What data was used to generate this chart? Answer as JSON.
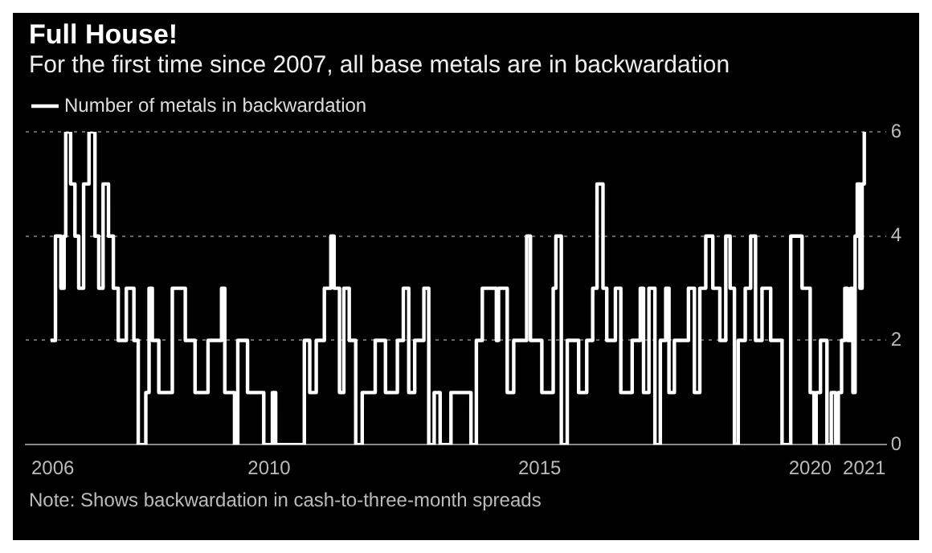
{
  "chart_data": {
    "type": "step",
    "title": "Full House!",
    "subtitle": "For the first time since 2007, all base metals are in backwardation",
    "annotations": [
      "Note: Shows backwardation in cash-to-three-month spreads"
    ],
    "legend": "top left",
    "grid": "y",
    "xlim": [
      2005.5,
      2021.4
    ],
    "xticks": [
      2006,
      2010,
      2015,
      2020,
      2021
    ],
    "ylim": [
      0,
      6
    ],
    "yticks": [
      0,
      2,
      4,
      6
    ],
    "series": [
      {
        "name": "Number of metals in backwardation",
        "color": "#ffffff",
        "x": [
          2005.96,
          2006.05,
          2006.15,
          2006.21,
          2006.24,
          2006.33,
          2006.41,
          2006.48,
          2006.57,
          2006.67,
          2006.78,
          2006.85,
          2006.93,
          2007.03,
          2007.12,
          2007.21,
          2007.36,
          2007.5,
          2007.58,
          2007.72,
          2007.78,
          2007.84,
          2007.96,
          2008.21,
          2008.45,
          2008.63,
          2008.87,
          2009.12,
          2009.18,
          2009.36,
          2009.42,
          2009.6,
          2009.9,
          2010.06,
          2010.12,
          2010.65,
          2010.75,
          2010.87,
          2011.02,
          2011.14,
          2011.2,
          2011.3,
          2011.38,
          2011.48,
          2011.6,
          2011.72,
          2011.96,
          2012.15,
          2012.37,
          2012.48,
          2012.58,
          2012.69,
          2012.86,
          2012.95,
          2013.05,
          2013.16,
          2013.36,
          2013.73,
          2013.83,
          2013.94,
          2014.2,
          2014.24,
          2014.4,
          2014.52,
          2014.76,
          2014.83,
          2015.04,
          2015.25,
          2015.3,
          2015.4,
          2015.51,
          2015.72,
          2015.87,
          2015.98,
          2016.06,
          2016.17,
          2016.24,
          2016.4,
          2016.5,
          2016.71,
          2016.86,
          2016.92,
          2017.02,
          2017.13,
          2017.23,
          2017.33,
          2017.39,
          2017.49,
          2017.65,
          2017.75,
          2017.86,
          2017.96,
          2018.07,
          2018.2,
          2018.33,
          2018.44,
          2018.52,
          2018.6,
          2018.67,
          2018.8,
          2018.9,
          2018.99,
          2019.11,
          2019.27,
          2019.48,
          2019.64,
          2019.85,
          2020.0,
          2020.07,
          2020.11,
          2020.19,
          2020.31,
          2020.39,
          2020.47,
          2020.52,
          2020.58,
          2020.64,
          2020.69,
          2020.75,
          2020.79,
          2020.83,
          2020.87,
          2020.92,
          2020.96,
          2021.0,
          2021.03
        ],
        "values": [
          2,
          4,
          3,
          4,
          6,
          5,
          4,
          3,
          5,
          6,
          4,
          3,
          5,
          4,
          3,
          2,
          3,
          2,
          0,
          1,
          3,
          2,
          1,
          3,
          2,
          1,
          2,
          3,
          1,
          0,
          2,
          1,
          0,
          1,
          0,
          2,
          1,
          2,
          3,
          4,
          3,
          1,
          3,
          2,
          0,
          1,
          2,
          1,
          2,
          3,
          1,
          2,
          3,
          0,
          1,
          0,
          1,
          0,
          2,
          3,
          2,
          3,
          1,
          2,
          4,
          2,
          1,
          3,
          4,
          0,
          2,
          1,
          2,
          3,
          5,
          3,
          2,
          3,
          1,
          2,
          3,
          1,
          3,
          0,
          2,
          3,
          1,
          2,
          2,
          3,
          1,
          3,
          4,
          3,
          2,
          4,
          3,
          0,
          2,
          3,
          4,
          2,
          3,
          2,
          0,
          4,
          3,
          1,
          0,
          1,
          2,
          0,
          1,
          0,
          1,
          2,
          3,
          2,
          3,
          1,
          4,
          5,
          3,
          5,
          6,
          6
        ]
      }
    ]
  }
}
